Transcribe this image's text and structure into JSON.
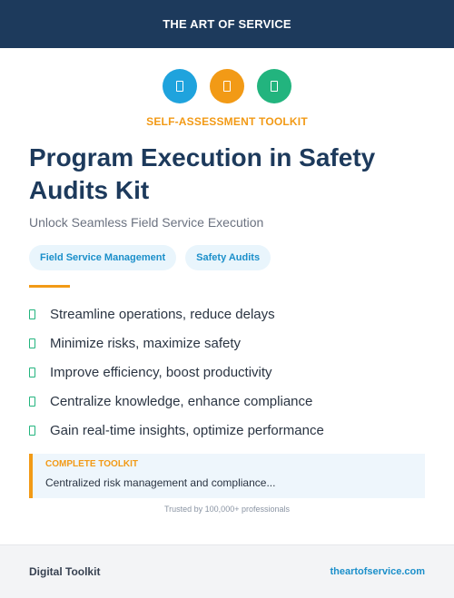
{
  "header": {
    "brand": "THE ART OF SERVICE"
  },
  "icons": [
    {
      "name": "document-icon",
      "color": "#1fa3dd"
    },
    {
      "name": "document-icon",
      "color": "#f29a16"
    },
    {
      "name": "document-icon",
      "color": "#22b47e"
    }
  ],
  "eyebrow": "SELF-ASSESSMENT TOOLKIT",
  "title": "Program Execution in Safety Audits Kit",
  "subtitle": "Unlock Seamless Field Service Execution",
  "tags": [
    "Field Service Management",
    "Safety Audits"
  ],
  "benefits": [
    "Streamline operations, reduce delays",
    "Minimize risks, maximize safety",
    "Improve efficiency, boost productivity",
    "Centralize knowledge, enhance compliance",
    "Gain real-time insights, optimize performance"
  ],
  "callout": {
    "label": "COMPLETE TOOLKIT",
    "text": "Centralized risk management and compliance..."
  },
  "trust": "Trusted by 100,000+ professionals",
  "footer": {
    "left": "Digital Toolkit",
    "right": "theartofservice.com"
  },
  "colors": {
    "navy": "#1d3a5c",
    "orange": "#f29a16",
    "blue": "#1fa3dd",
    "green": "#22b47e"
  }
}
